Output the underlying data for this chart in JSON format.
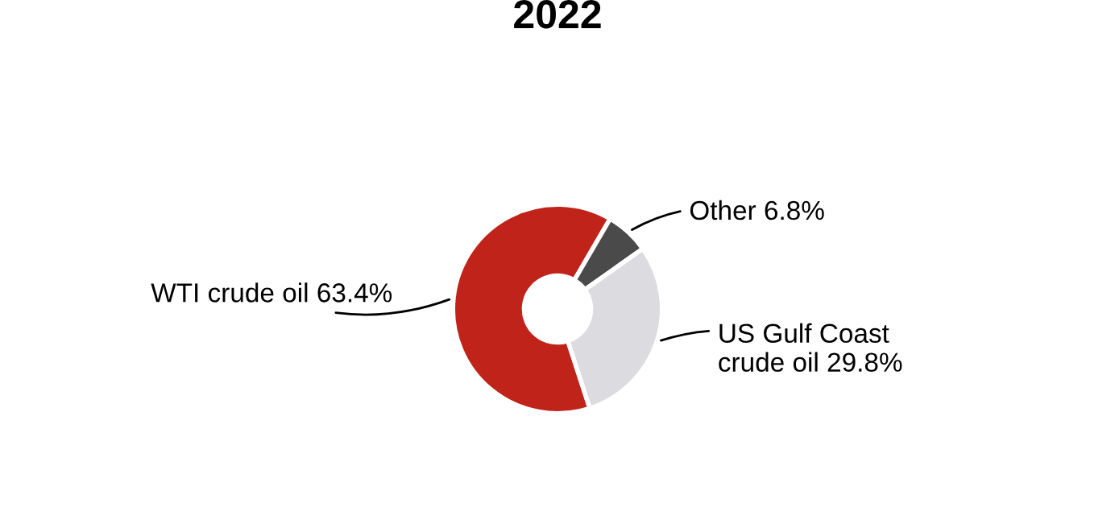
{
  "chart_data": {
    "type": "donut",
    "title": "2022",
    "categories": [
      "WTI crude oil",
      "Other",
      "US Gulf Coast\ncrude oil"
    ],
    "values": [
      63.4,
      6.8,
      29.8
    ],
    "colors": [
      "#c0231a",
      "#4a4a4a",
      "#dcdce0"
    ],
    "value_labels": [
      "63.4%",
      "6.8%",
      "29.8%"
    ],
    "legend": false
  }
}
